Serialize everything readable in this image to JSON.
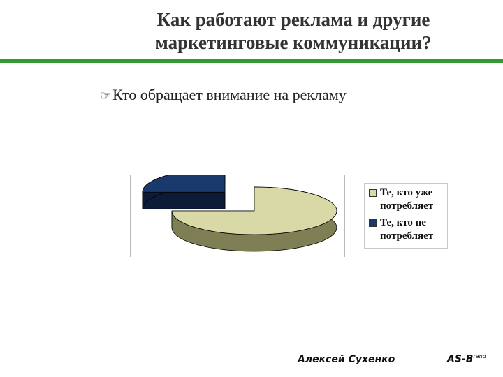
{
  "slide": {
    "title_line1": "Как работают реклама и другие",
    "title_line2": "маркетинговые коммуникации?",
    "bullet_text": "Кто обращает внимание на рекламу",
    "bullet_icon": "pointing-hand-icon"
  },
  "footer": {
    "author": "Алексей Сухенко",
    "brand_main": "AS-B",
    "brand_sup": "rand"
  },
  "colors": {
    "accent_rule": "#339933",
    "slice_users": "#d9d9a8",
    "slice_users_side": "#7f7f55",
    "slice_nonusers": "#1a3a6e",
    "slice_nonusers_side": "#0c1c38"
  },
  "chart_data": {
    "type": "pie",
    "style": "3d-exploded",
    "categories": [
      "Те, кто уже потребляет",
      "Те, кто не потребляет"
    ],
    "values": [
      75,
      25
    ],
    "legend": [
      "Те, кто уже потребляет",
      "Те, кто не потребляет"
    ],
    "legend_placement": "right"
  }
}
